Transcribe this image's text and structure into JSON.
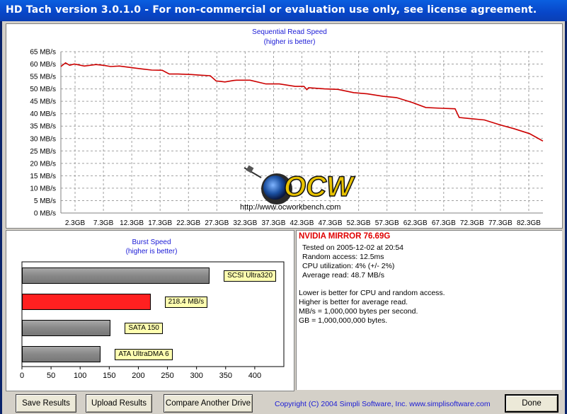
{
  "window": {
    "title": "HD Tach version 3.0.1.0  - For non-commercial or evaluation use only, see license agreement."
  },
  "sequential": {
    "title_line1": "Sequential Read Speed",
    "title_line2": "(higher is better)"
  },
  "burst": {
    "title_line1": "Burst Speed",
    "title_line2": "(higher is better)"
  },
  "watermark": {
    "logo_text": "OCW",
    "url": "http://www.ocworkbench.com"
  },
  "info": {
    "drive": "NVIDIA MIRROR 76.69G",
    "tested": "Tested on 2005-12-02 at 20:54",
    "random_access": "Random access: 12.5ms",
    "cpu": "CPU utilization: 4% (+/- 2%)",
    "average": "Average read: 48.7 MB/s",
    "note1": "Lower is better for CPU and random access.",
    "note2": "Higher is better for average read.",
    "note3": "MB/s = 1,000,000 bytes per second.",
    "note4": "GB = 1,000,000,000 bytes."
  },
  "buttons": {
    "save": "Save Results",
    "upload": "Upload Results",
    "compare": "Compare Another Drive",
    "done": "Done"
  },
  "copyright": "Copyright (C) 2004 Simpli Software, Inc. www.simplisoftware.com",
  "colors": {
    "line": "#cc0000",
    "title": "#1a1ad6",
    "highlight_bar": "#ff2020"
  },
  "chart_data": [
    {
      "type": "line",
      "title": "Sequential Read Speed",
      "subtitle": "(higher is better)",
      "ylabel_unit": "MB/s",
      "y_ticks": [
        "0 MB/s",
        "5 MB/s",
        "10 MB/s",
        "15 MB/s",
        "20 MB/s",
        "25 MB/s",
        "30 MB/s",
        "35 MB/s",
        "40 MB/s",
        "45 MB/s",
        "50 MB/s",
        "55 MB/s",
        "60 MB/s",
        "65 MB/s"
      ],
      "ylim": [
        0,
        65
      ],
      "x_ticks": [
        "2.3GB",
        "7.3GB",
        "12.3GB",
        "17.3GB",
        "22.3GB",
        "27.3GB",
        "32.3GB",
        "37.3GB",
        "42.3GB",
        "47.3GB",
        "52.3GB",
        "57.3GB",
        "62.3GB",
        "67.3GB",
        "72.3GB",
        "77.3GB",
        "82.3GB"
      ],
      "xlim": [
        0,
        82.3
      ],
      "grid": true,
      "x": [
        0,
        0.8,
        1.5,
        2.3,
        4,
        6,
        7.3,
        8.5,
        10,
        12.3,
        14,
        15.5,
        17.3,
        18.5,
        20,
        22.3,
        24,
        25.5,
        26.5,
        27.3,
        28,
        29.5,
        30,
        32.3,
        35,
        37.3,
        40,
        41.5,
        42,
        42.3,
        45,
        47.3,
        50,
        52.3,
        55,
        57.3,
        60,
        62.3,
        65,
        67.3,
        68,
        70,
        72.3,
        75,
        77.3,
        80,
        82.3
      ],
      "y": [
        59,
        60.5,
        59.5,
        60,
        59.2,
        59.8,
        59.5,
        59,
        59.2,
        58.5,
        58,
        57.6,
        57.5,
        56,
        56,
        55.8,
        55.5,
        55.3,
        53.2,
        53,
        52.8,
        53.4,
        53.5,
        53.5,
        52,
        52,
        51,
        51,
        49.7,
        50.5,
        50,
        49.8,
        48.5,
        48,
        47,
        46.5,
        44.5,
        42.5,
        42.2,
        42,
        38.5,
        38,
        37.5,
        35.5,
        34,
        32,
        29
      ]
    },
    {
      "type": "bar",
      "title": "Burst Speed",
      "subtitle": "(higher is better)",
      "orientation": "horizontal",
      "categories": [
        "SCSI Ultra320",
        "218.4 MB/s",
        "SATA 150",
        "ATA UltraDMA 6"
      ],
      "values": [
        320,
        218.4,
        150,
        133
      ],
      "highlight_index": 1,
      "x_ticks": [
        "0",
        "50",
        "100",
        "150",
        "200",
        "250",
        "300",
        "350",
        "400"
      ],
      "xlim": [
        0,
        450
      ]
    }
  ]
}
